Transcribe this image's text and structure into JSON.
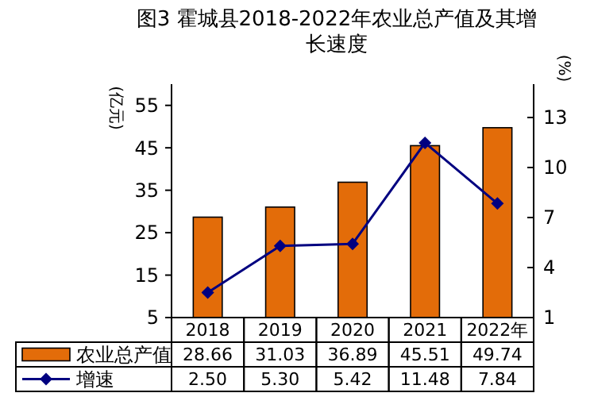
{
  "chart_data": {
    "type": "bar",
    "title": "图3 霍城县2018-2022年农业总产值及其增长速度",
    "ylabel": "(亿元)",
    "y2label": "(%)",
    "categories": [
      "2018",
      "2019",
      "2020",
      "2021",
      "2022年"
    ],
    "series": [
      {
        "name": "农业总产值",
        "color": "#e36c09",
        "values": [
          28.66,
          31.03,
          36.89,
          45.51,
          49.74
        ],
        "value_labels": [
          "28.66",
          "31.03",
          "36.89",
          "45.51",
          "49.74"
        ]
      },
      {
        "name": "增速",
        "type": "line",
        "axis": "y2",
        "color": "#000080",
        "marker": "diamond",
        "values": [
          2.5,
          5.3,
          5.42,
          11.48,
          7.84
        ],
        "value_labels": [
          "2.50",
          "5.30",
          "5.42",
          "11.48",
          "7.84"
        ]
      }
    ],
    "ylim": [
      5,
      60
    ],
    "yticks": [
      5,
      15,
      25,
      35,
      45,
      55
    ],
    "y2lim": [
      1,
      15
    ],
    "y2ticks": [
      1,
      4,
      7,
      10,
      13
    ],
    "legend": "bottom",
    "grid": false
  }
}
